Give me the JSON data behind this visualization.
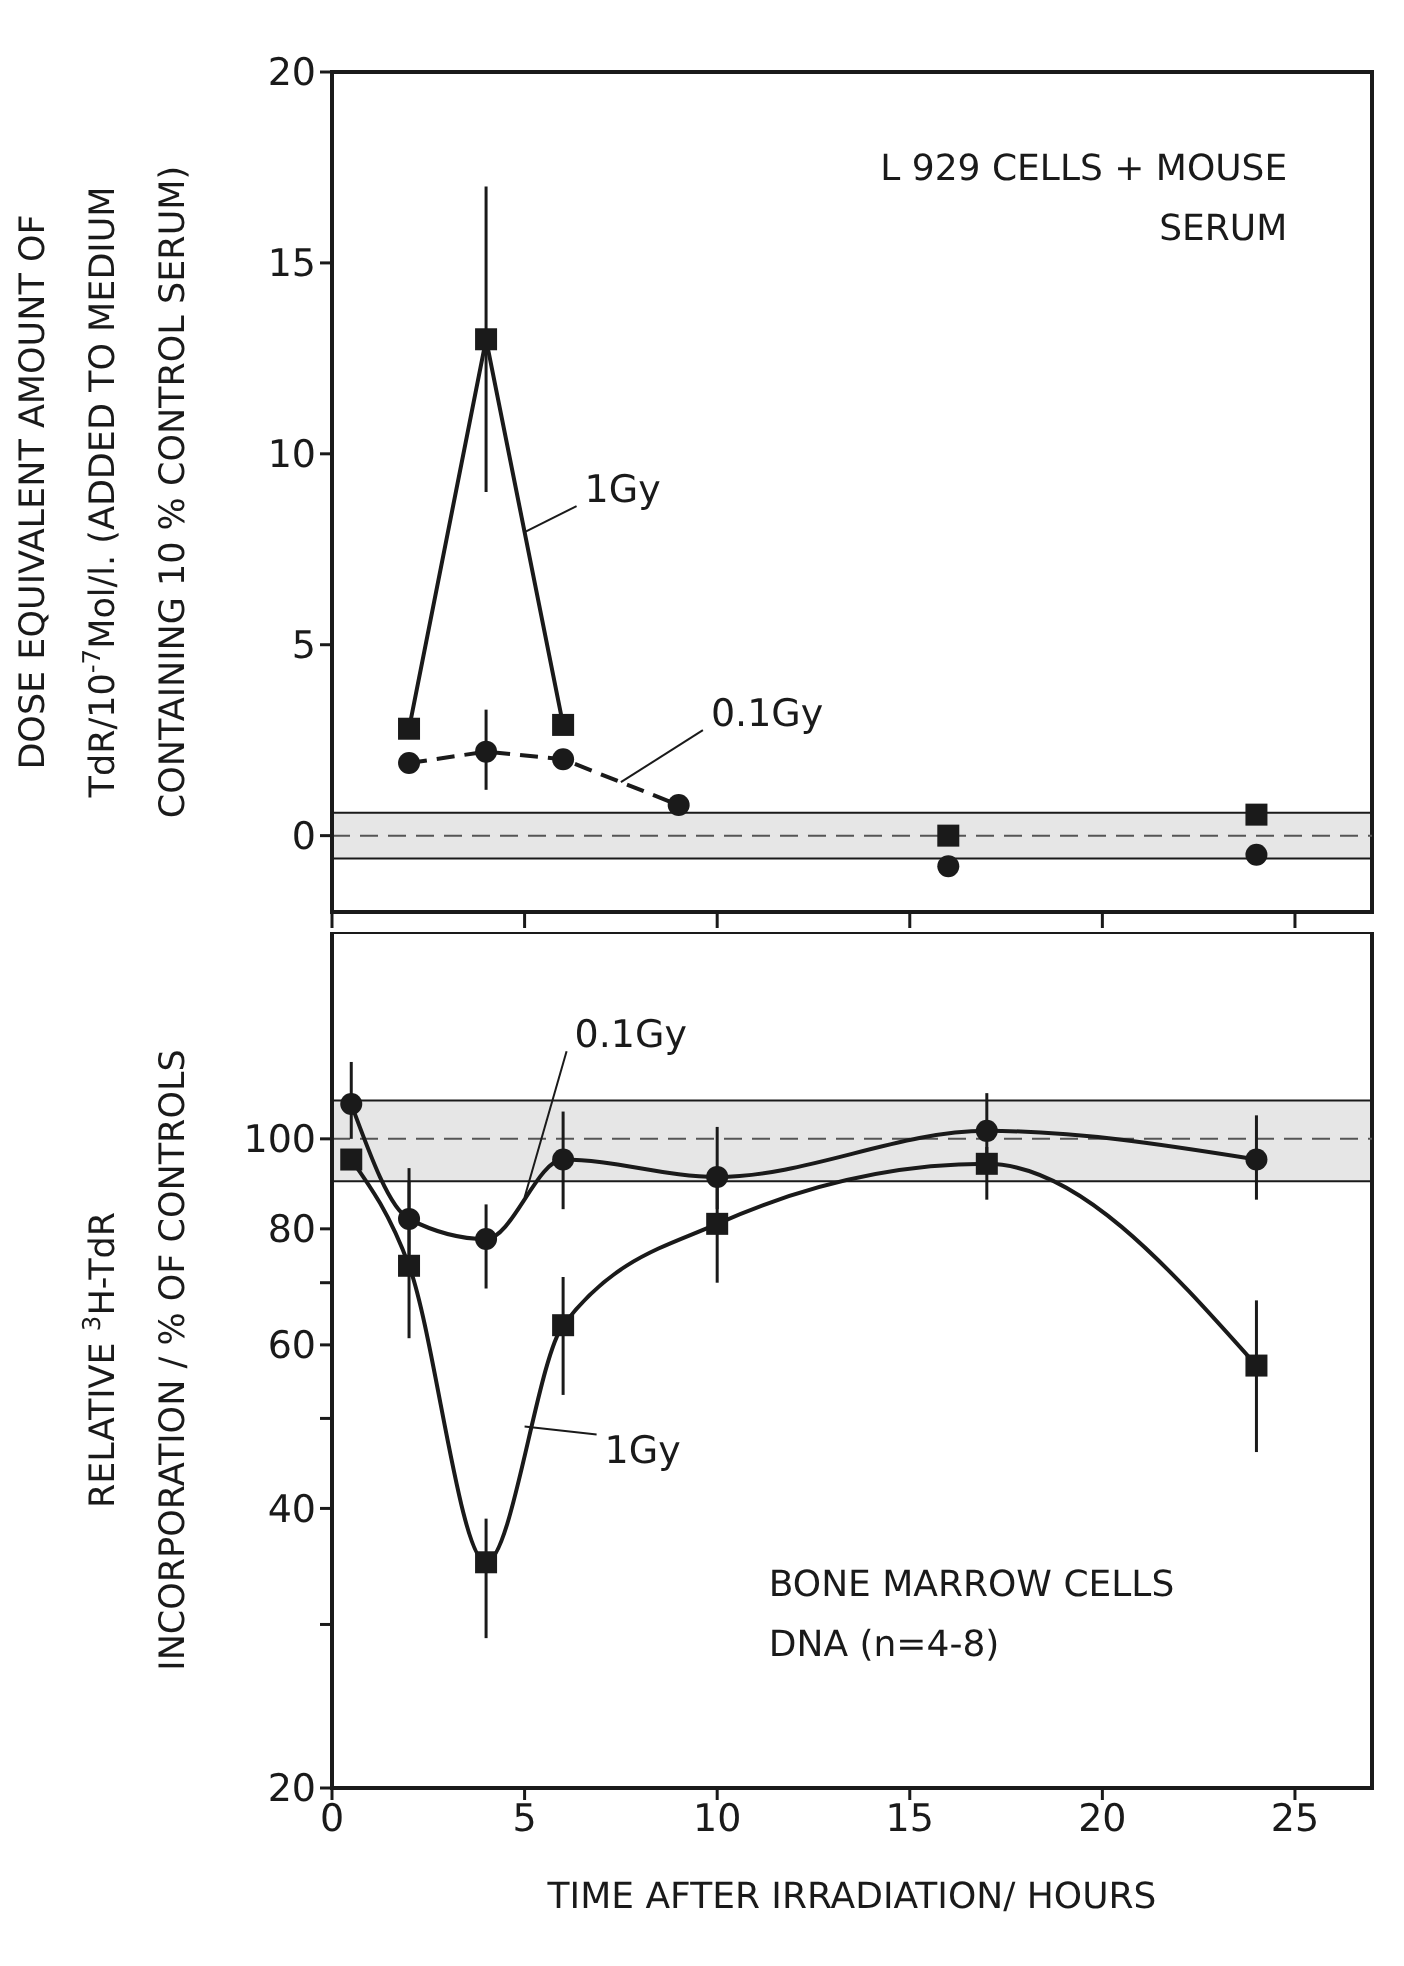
{
  "chart_data": [
    {
      "type": "line",
      "ylabel": "DOSE EQUIVALENT AMOUNT OF\nTdR/10$^{-7}$Mol/l. (ADDED TO MEDIUM\nCONTAINING 10 % CONTROL SERUM)",
      "annotations": [
        "L 929 CELLS + MOUSE\nSERUM"
      ],
      "xlim": [
        0,
        27
      ],
      "xticks": [
        {
          "value": 0,
          "label": null
        },
        {
          "value": 5,
          "label": null
        },
        {
          "value": 10,
          "label": null
        },
        {
          "value": 15,
          "label": null
        },
        {
          "value": 20,
          "label": null
        },
        {
          "value": 25,
          "label": null
        }
      ],
      "ylim": [
        -2,
        20
      ],
      "yticks": [
        0,
        5,
        10,
        15,
        20
      ],
      "tick_labels": "y",
      "grid": false,
      "bands": [
        {
          "axis": "y",
          "from": -0.6,
          "to": 0.6,
          "color": "#d6d6d6"
        }
      ],
      "ref_lines": [
        {
          "axis": "y",
          "value": 0,
          "line_style": "dashed",
          "color": "#555555"
        }
      ],
      "series": [
        {
          "name": "1Gy",
          "type": "line",
          "color": "#1a1a1a",
          "marker": "square",
          "line_style": "solid",
          "x": [
            2,
            4,
            6
          ],
          "values": [
            2.8,
            13,
            2.9
          ],
          "errors": [
            null,
            [
              9,
              17
            ],
            null
          ]
        },
        {
          "name": "0.1Gy",
          "type": "line",
          "color": "#1a1a1a",
          "marker": "circle",
          "line_style": "dashed",
          "x": [
            2,
            4,
            6,
            9
          ],
          "values": [
            1.9,
            2.2,
            2.0,
            0.8
          ],
          "errors": [
            null,
            [
              1.2,
              3.3
            ],
            null,
            null
          ]
        },
        {
          "type": "scatter",
          "color": "#1a1a1a",
          "marker": "square",
          "x": [
            16,
            24
          ],
          "values": [
            0,
            0.55
          ]
        },
        {
          "type": "scatter",
          "color": "#1a1a1a",
          "marker": "circle",
          "x": [
            16,
            24
          ],
          "values": [
            -0.8,
            -0.5
          ]
        }
      ]
    },
    {
      "type": "line",
      "xlabel": "TIME AFTER IRRADIATION/ HOURS",
      "ylabel": "RELATIVE $^{3}$H-TdR\nINCORPORATION / % OF CONTROLS",
      "annotations": [
        "BONE MARROW CELLS\nDNA (n=4-8)"
      ],
      "log": "y",
      "xlim": [
        0,
        27
      ],
      "xticks": [
        0,
        5,
        10,
        15,
        20,
        25
      ],
      "ylim": [
        20,
        167
      ],
      "yticks": [
        20,
        {
          "value": 30,
          "label": null
        },
        40,
        {
          "value": 50,
          "label": null
        },
        60,
        {
          "value": 70,
          "label": null
        },
        80,
        100
      ],
      "grid": false,
      "bands": [
        {
          "axis": "y",
          "from": 90,
          "to": 110,
          "color": "#d6d6d6"
        }
      ],
      "ref_lines": [
        {
          "axis": "y",
          "value": 100,
          "line_style": "dashed",
          "color": "#555555"
        }
      ],
      "series": [
        {
          "name": "0.1Gy",
          "type": "line",
          "color": "#1a1a1a",
          "marker": "circle",
          "line_style": "solid",
          "x": [
            0.5,
            2,
            4,
            6,
            10,
            17,
            24
          ],
          "values": [
            109,
            82,
            78,
            95,
            91,
            102,
            95
          ],
          "errors": [
            [
              100,
              121
            ],
            [
              75,
              93
            ],
            [
              69,
              85
            ],
            [
              84,
              107
            ],
            [
              84,
              103
            ],
            [
              92,
              112
            ],
            [
              86,
              106
            ]
          ]
        },
        {
          "name": "1Gy",
          "type": "line",
          "color": "#1a1a1a",
          "marker": "square",
          "line_style": "solid",
          "x": [
            0.5,
            2,
            4,
            6,
            10,
            17,
            24
          ],
          "values": [
            95,
            73,
            35,
            63,
            81,
            94,
            57
          ],
          "errors": [
            null,
            [
              61,
              90
            ],
            [
              29,
              39
            ],
            [
              53,
              71
            ],
            [
              70,
              90
            ],
            [
              86,
              98
            ],
            [
              46,
              67
            ]
          ]
        }
      ]
    }
  ]
}
